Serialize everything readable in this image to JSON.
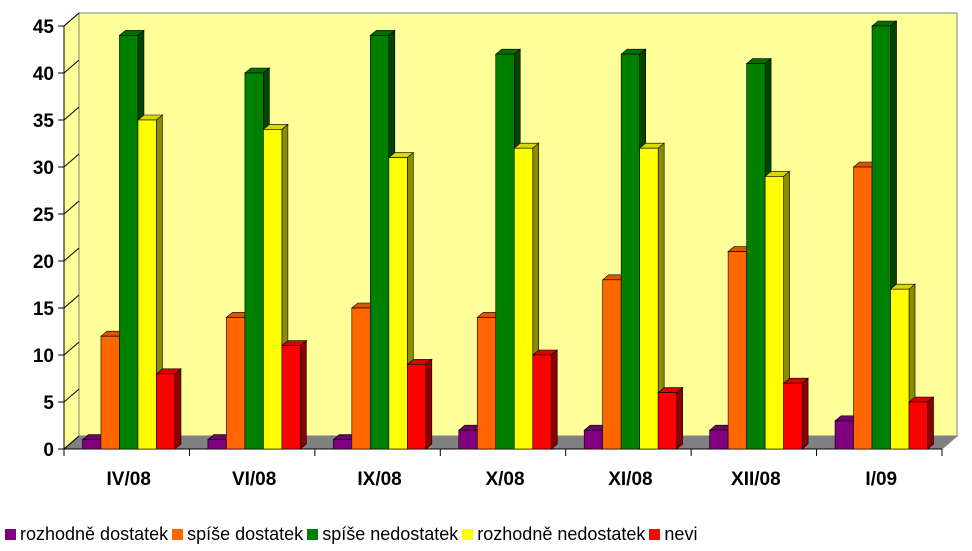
{
  "chart_data": {
    "type": "bar",
    "categories": [
      "IV/08",
      "VI/08",
      "IX/08",
      "X/08",
      "XI/08",
      "XII/08",
      "I/09"
    ],
    "series": [
      {
        "name": "rozhodně dostatek",
        "color": "#800080",
        "values": [
          1,
          1,
          1,
          2,
          2,
          2,
          3
        ]
      },
      {
        "name": "spíše dostatek",
        "color": "#FF6600",
        "values": [
          12,
          14,
          15,
          14,
          18,
          21,
          30
        ]
      },
      {
        "name": "spíše nedostatek",
        "color": "#008000",
        "values": [
          44,
          40,
          44,
          42,
          42,
          41,
          45
        ]
      },
      {
        "name": "rozhodně nedostatek",
        "color": "#FFFF00",
        "values": [
          35,
          34,
          31,
          32,
          32,
          29,
          17
        ]
      },
      {
        "name": "nevi",
        "color": "#FF0000",
        "values": [
          8,
          11,
          9,
          10,
          6,
          7,
          5
        ]
      }
    ],
    "yticks": [
      0,
      5,
      10,
      15,
      20,
      25,
      30,
      35,
      40,
      45
    ],
    "ylim": [
      0,
      45
    ],
    "plot_background": "#FFFF99",
    "floor_color": "#808080",
    "grid": false,
    "legend_position": "bottom",
    "title": "",
    "xlabel": "",
    "ylabel": ""
  }
}
